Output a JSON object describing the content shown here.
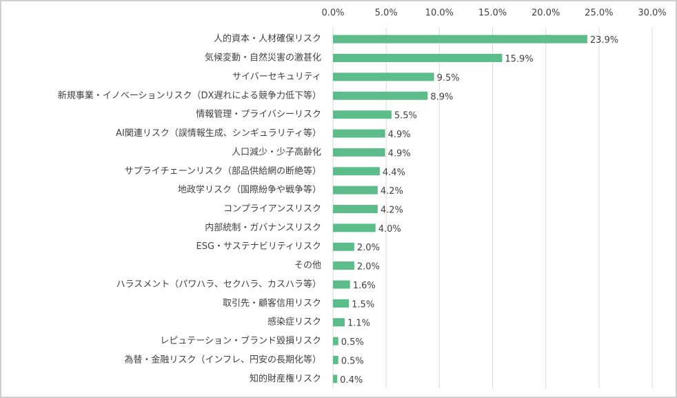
{
  "chart_data": {
    "type": "hbar",
    "categories": [
      "人的資本・人材確保リスク",
      "気候変動・自然災害の激甚化",
      "サイバーセキュリティ",
      "新規事業・イノベーションリスク（DX遅れによる競争力低下等）",
      "情報管理・プライバシーリスク",
      "AI関連リスク（誤情報生成、シンギュラリティ等）",
      "人口減少・少子高齢化",
      "サプライチェーンリスク（部品供給網の断絶等）",
      "地政学リスク（国際紛争や戦争等）",
      "コンプライアンスリスク",
      "内部統制・ガバナンスリスク",
      "ESG・サステナビリティリスク",
      "その他",
      "ハラスメント（パワハラ、セクハラ、カスハラ等）",
      "取引先・顧客信用リスク",
      "感染症リスク",
      "レピュテーション・ブランド毀損リスク",
      "為替・金融リスク（インフレ、円安の長期化等）",
      "知的財産権リスク"
    ],
    "values": [
      23.9,
      15.9,
      9.5,
      8.9,
      5.5,
      4.9,
      4.9,
      4.4,
      4.2,
      4.2,
      4.0,
      2.0,
      2.0,
      1.6,
      1.5,
      1.1,
      0.5,
      0.5,
      0.4
    ],
    "value_labels": [
      "23.9%",
      "15.9%",
      "9.5%",
      "8.9%",
      "5.5%",
      "4.9%",
      "4.9%",
      "4.4%",
      "4.2%",
      "4.2%",
      "4.0%",
      "2.0%",
      "2.0%",
      "1.6%",
      "1.5%",
      "1.1%",
      "0.5%",
      "0.5%",
      "0.4%"
    ],
    "color": "#5cbd8b",
    "xlim": [
      0,
      30
    ],
    "xticks": [
      {
        "value": 0,
        "label": "0.0%"
      },
      {
        "value": 5,
        "label": "5.0%"
      },
      {
        "value": 10,
        "label": "10.0%"
      },
      {
        "value": 15,
        "label": "15.0%"
      },
      {
        "value": 20,
        "label": "20.0%"
      },
      {
        "value": 25,
        "label": "25.0%"
      },
      {
        "value": 30,
        "label": "30.0%"
      }
    ],
    "grid": true
  }
}
